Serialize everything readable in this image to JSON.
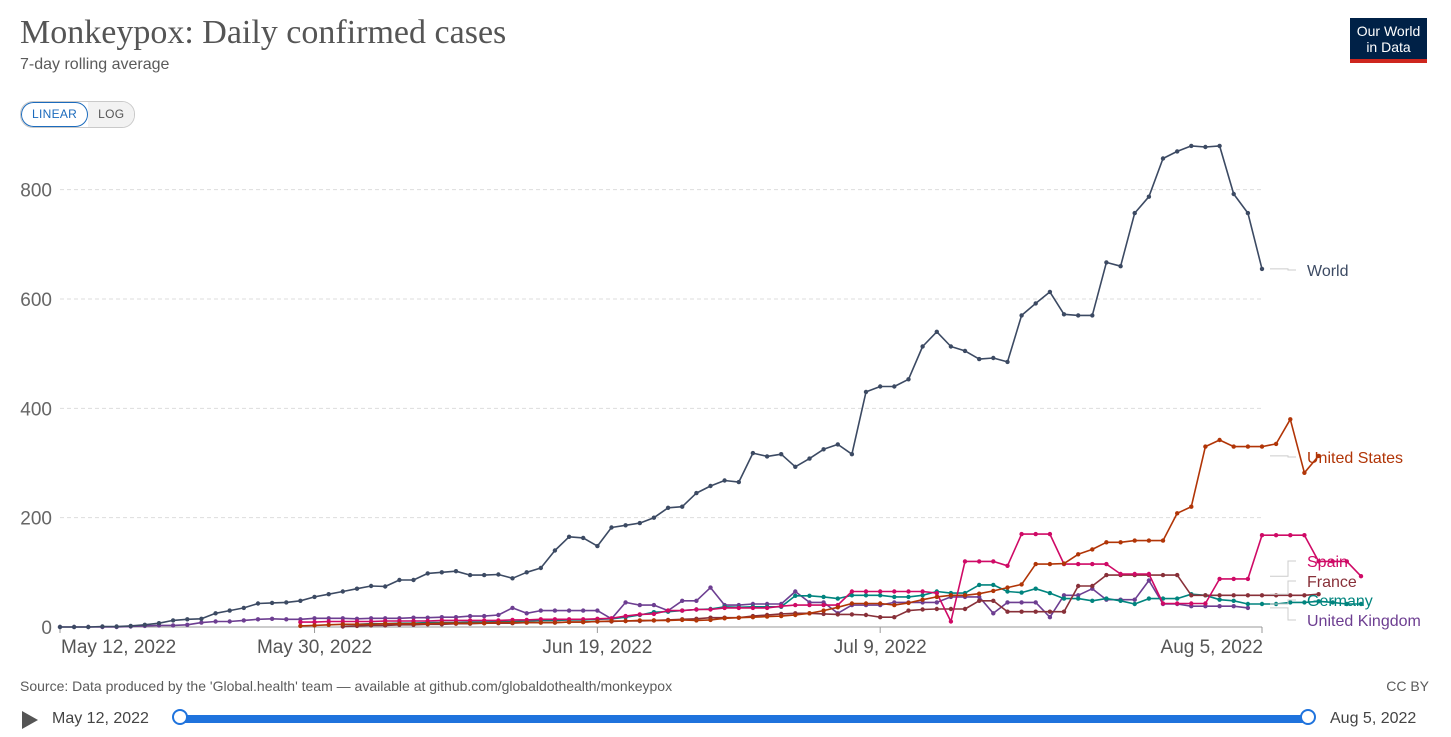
{
  "header": {
    "title": "Monkeypox: Daily confirmed cases",
    "subtitle": "7-day rolling average",
    "logo_line1": "Our World",
    "logo_line2": "in Data"
  },
  "controls": {
    "linear_label": "LINEAR",
    "log_label": "LOG"
  },
  "footer": {
    "source": "Source: Data produced by the 'Global.health' team — available at github.com/globaldothealth/monkeypox",
    "license": "CC BY"
  },
  "timeline": {
    "start_label": "May 12, 2022",
    "end_label": "Aug 5, 2022"
  },
  "chart_data": {
    "type": "line",
    "ylim": [
      0,
      900
    ],
    "yticks": [
      0,
      200,
      400,
      600,
      800
    ],
    "x_tick_labels": [
      "May 12, 2022",
      "May 30, 2022",
      "Jun 19, 2022",
      "Jul 9, 2022",
      "Aug 5, 2022"
    ],
    "x_tick_days": [
      0,
      18,
      38,
      58,
      85
    ],
    "x_domain_days": [
      0,
      85
    ],
    "grid": true,
    "legend": "right end labels",
    "series": [
      {
        "name": "World",
        "color": "#3c4a63",
        "start_day": 0,
        "values": [
          0,
          0,
          0,
          1,
          1,
          2,
          4,
          7,
          12,
          14,
          15,
          25,
          30,
          35,
          43,
          44,
          45,
          48,
          55,
          60,
          65,
          70,
          75,
          74,
          86,
          86,
          98,
          100,
          102,
          95,
          95,
          96,
          89,
          100,
          108,
          140,
          165,
          163,
          148,
          182,
          186,
          190,
          200,
          218,
          220,
          245,
          258,
          268,
          265,
          318,
          312,
          316,
          293,
          308,
          325,
          334,
          316,
          430,
          440,
          440,
          453,
          513,
          540,
          513,
          505,
          490,
          492,
          485,
          570,
          592,
          613,
          572,
          570,
          570,
          667,
          660,
          757,
          787,
          857,
          870,
          880,
          878,
          880,
          792,
          757,
          655
        ]
      },
      {
        "name": "United States",
        "color": "#b13507",
        "start_day": 17,
        "values": [
          2,
          3,
          4,
          5,
          5,
          5,
          6,
          6,
          6,
          6,
          7,
          7,
          7,
          7,
          8,
          8,
          8,
          8,
          8,
          9,
          9,
          10,
          11,
          11,
          12,
          12,
          12,
          13,
          12,
          13,
          16,
          17,
          18,
          19,
          20,
          22,
          25,
          30,
          36,
          43,
          43,
          43,
          40,
          44,
          50,
          55,
          58,
          58,
          61,
          66,
          72,
          78,
          115,
          115,
          116,
          133,
          142,
          155,
          155,
          158,
          158,
          158,
          208,
          220,
          330,
          342,
          330,
          330,
          330,
          335,
          380,
          282,
          313
        ]
      },
      {
        "name": "Spain",
        "color": "#cf0a66",
        "start_day": 17,
        "values": [
          9,
          9,
          10,
          10,
          10,
          10,
          11,
          11,
          11,
          11,
          12,
          12,
          12,
          12,
          12,
          13,
          13,
          14,
          14,
          14,
          14,
          15,
          16,
          20,
          23,
          24,
          30,
          30,
          32,
          32,
          35,
          35,
          35,
          35,
          38,
          40,
          40,
          40,
          40,
          65,
          65,
          65,
          65,
          65,
          65,
          62,
          10,
          120,
          120,
          120,
          112,
          170,
          170,
          170,
          115,
          115,
          115,
          115,
          97,
          97,
          97,
          43,
          43,
          43,
          43,
          88,
          88,
          88,
          168,
          168,
          168,
          168,
          120,
          120,
          120,
          93
        ]
      },
      {
        "name": "France",
        "color": "#883039",
        "start_day": 20,
        "values": [
          1,
          2,
          3,
          3,
          4,
          4,
          5,
          5,
          6,
          6,
          7,
          7,
          7,
          8,
          8,
          8,
          9,
          9,
          10,
          10,
          11,
          11,
          12,
          13,
          14,
          15,
          17,
          17,
          17,
          20,
          22,
          24,
          25,
          25,
          24,
          23,
          23,
          22,
          18,
          18,
          30,
          32,
          33,
          33,
          33,
          48,
          48,
          28,
          28,
          28,
          28,
          28,
          75,
          75,
          95,
          95,
          95,
          95,
          95,
          95,
          58,
          58,
          58,
          58,
          58,
          58,
          58,
          58,
          58,
          60
        ]
      },
      {
        "name": "Germany",
        "color": "#00847e",
        "start_day": 20,
        "values": [
          5,
          5,
          6,
          6,
          7,
          7,
          8,
          8,
          8,
          9,
          9,
          10,
          10,
          11,
          12,
          12,
          13,
          13,
          14,
          15,
          18,
          22,
          27,
          28,
          30,
          32,
          33,
          37,
          36,
          37,
          37,
          37,
          57,
          57,
          55,
          52,
          58,
          58,
          58,
          55,
          55,
          58,
          65,
          62,
          62,
          77,
          77,
          65,
          63,
          70,
          62,
          52,
          52,
          48,
          52,
          48,
          42,
          52,
          52,
          52,
          60,
          58,
          50,
          48,
          42,
          42,
          42,
          45,
          45,
          47,
          45,
          42,
          42
        ]
      },
      {
        "name": "United Kingdom",
        "color": "#6d3e91",
        "start_day": 0,
        "values": [
          0,
          0,
          0,
          0,
          0,
          1,
          2,
          3,
          3,
          4,
          8,
          10,
          10,
          12,
          14,
          15,
          14,
          14,
          16,
          16,
          16,
          15,
          16,
          16,
          16,
          17,
          17,
          18,
          18,
          20,
          20,
          22,
          35,
          25,
          30,
          30,
          30,
          30,
          30,
          15,
          45,
          40,
          40,
          30,
          48,
          48,
          72,
          40,
          40,
          42,
          42,
          42,
          65,
          45,
          45,
          25,
          40,
          40,
          40,
          45,
          45,
          45,
          45,
          55,
          55,
          55,
          25,
          45,
          45,
          45,
          18,
          58,
          58,
          70,
          50,
          50,
          50,
          85,
          42,
          42,
          38,
          38,
          38,
          38,
          35
        ]
      }
    ]
  }
}
